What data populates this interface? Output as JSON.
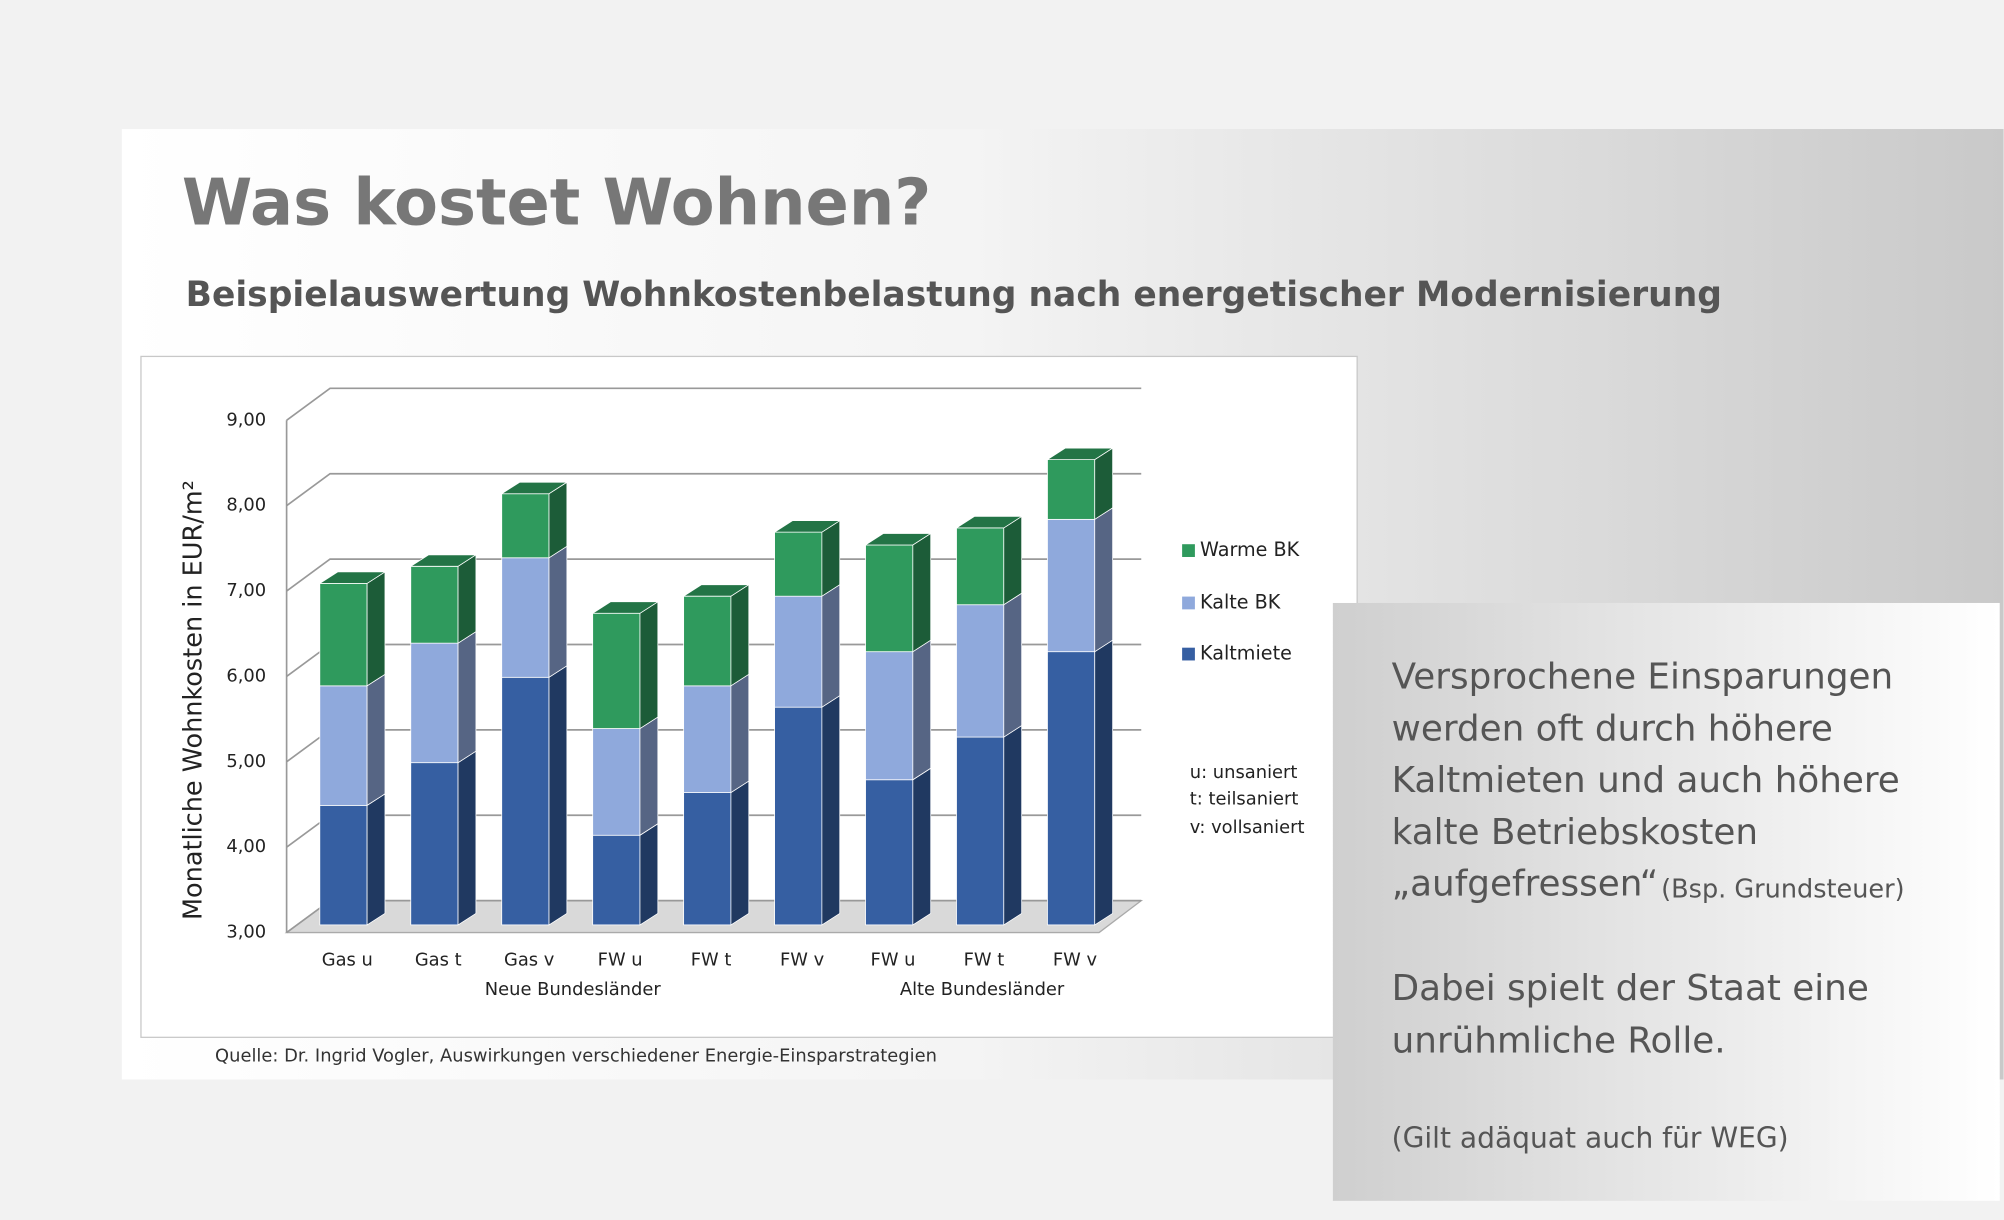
{
  "slide": {
    "title": "Was kostet Wohnen?",
    "subtitle": "Beispielauswertung Wohnkostenbelastung nach energetischer Modernisierung",
    "source": "Quelle:  Dr. Ingrid Vogler,  Auswirkungen verschiedener Energie-Einsparstrategien",
    "notes": [
      "u: unsaniert",
      "t: teilsaniert",
      "v: vollsaniert"
    ],
    "box": {
      "lines": [
        "Versprochene Einsparungen",
        "werden oft durch höhere",
        "Kaltmieten und auch höhere",
        "kalte Betriebskosten",
        "„aufgefressen“"
      ],
      "aside": "(Bsp. Grundsteuer)",
      "paragraph2": [
        "Dabei spielt der Staat eine",
        "unrühmliche Rolle."
      ],
      "footnote": "(Gilt adäquat auch für WEG)"
    }
  },
  "chart_data": {
    "type": "stacked-bar-3d",
    "ylabel": "Monatliche Wohnkosten in EUR/m²",
    "categories": [
      "Gas u",
      "Gas t",
      "Gas v",
      "FW u",
      "FW t",
      "FW v",
      "FW u",
      "FW t",
      "FW v"
    ],
    "groups": [
      "Neue Bundesländer",
      "Alte Bundesländer"
    ],
    "series": [
      {
        "name": "Kaltmiete",
        "color": "#365fa2",
        "values": [
          4.4,
          4.9,
          5.9,
          4.05,
          4.55,
          5.55,
          4.7,
          5.2,
          6.2
        ]
      },
      {
        "name": "Kalte BK",
        "color": "#8fa9dc",
        "values": [
          1.4,
          1.4,
          1.4,
          1.25,
          1.25,
          1.3,
          1.5,
          1.55,
          1.55
        ]
      },
      {
        "name": "Warme BK",
        "color": "#2f9a5d",
        "values": [
          1.2,
          0.9,
          0.75,
          1.35,
          1.05,
          0.75,
          1.25,
          0.9,
          0.7
        ]
      }
    ],
    "ylim": [
      3,
      9
    ],
    "yticks": [
      {
        "value": 3,
        "label": "3,00"
      },
      {
        "value": 4,
        "label": "4,00"
      },
      {
        "value": 5,
        "label": "5,00"
      },
      {
        "value": 6,
        "label": "6,00"
      },
      {
        "value": 7,
        "label": "7,00"
      },
      {
        "value": 8,
        "label": "8,00"
      },
      {
        "value": 9,
        "label": "9,00"
      }
    ],
    "grid": true
  }
}
